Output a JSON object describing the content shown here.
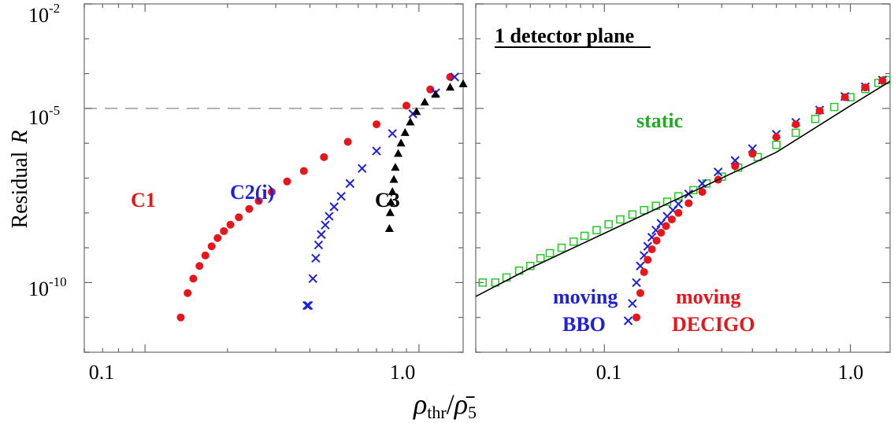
{
  "ylabel_text": "Residual",
  "ylabel_symbol": "R",
  "xlabel_rho": "ρ",
  "xlabel_sub1": "thr",
  "xlabel_slash": "/",
  "xlabel_rhobar": "ρ̄",
  "xlabel_sub2": "5",
  "colors": {
    "red": "#e8151b",
    "blue": "#1f1fe0",
    "black": "#000000",
    "green": "#22cc22",
    "dashed": "#999999"
  },
  "chart_data": [
    {
      "type": "scatter",
      "xscale": "log",
      "yscale": "log",
      "xlim": [
        0.06,
        1.45
      ],
      "ylim": [
        1e-12,
        0.01
      ],
      "xticks": [
        {
          "value": 0.1,
          "label": "0.1"
        },
        {
          "value": 1.0,
          "label": "1.0"
        }
      ],
      "yticks": [
        {
          "value": 0.01,
          "base": "10",
          "exp": "-2"
        },
        {
          "value": 1e-05,
          "base": "10",
          "exp": "-5"
        },
        {
          "value": 1e-10,
          "base": "10",
          "exp": "-10"
        }
      ],
      "reference_line": 1e-05,
      "series": [
        {
          "name": "C1",
          "color": "#e8151b",
          "marker": "circle",
          "x": [
            0.135,
            0.143,
            0.15,
            0.158,
            0.166,
            0.175,
            0.184,
            0.194,
            0.205,
            0.22,
            0.24,
            0.26,
            0.29,
            0.33,
            0.38,
            0.45,
            0.55,
            0.7,
            0.9,
            1.1,
            1.3
          ],
          "y": [
            1e-11,
            5e-11,
            1.3e-10,
            3e-10,
            6e-10,
            1.1e-09,
            1.9e-09,
            3e-09,
            4.6e-09,
            7.5e-09,
            1.3e-08,
            2.2e-08,
            4e-08,
            8e-08,
            1.6e-07,
            4e-07,
            1.1e-06,
            3.5e-06,
            1.2e-05,
            3.5e-05,
            8e-05
          ]
        },
        {
          "name": "C2(i)",
          "color": "#1f1fe0",
          "marker": "x",
          "x": [
            0.39,
            0.395,
            0.41,
            0.42,
            0.43,
            0.44,
            0.455,
            0.47,
            0.49,
            0.52,
            0.56,
            0.62,
            0.7,
            0.8,
            0.95,
            1.15,
            1.35
          ],
          "y": [
            2.2e-11,
            2.2e-11,
            1.3e-10,
            5e-10,
            1.2e-09,
            2.4e-09,
            4.5e-09,
            8e-09,
            1.5e-08,
            3e-08,
            7e-08,
            1.9e-07,
            6e-07,
            1.9e-06,
            7e-06,
            2.8e-05,
            8e-05
          ]
        },
        {
          "name": "C3",
          "color": "#000000",
          "marker": "triangle",
          "x": [
            0.78,
            0.785,
            0.79,
            0.8,
            0.81,
            0.82,
            0.84,
            0.86,
            0.89,
            0.93,
            0.98,
            1.05,
            1.15,
            1.3,
            1.45
          ],
          "y": [
            3.5e-09,
            1e-08,
            2e-08,
            4e-08,
            9e-08,
            2e-07,
            5e-07,
            1e-06,
            2e-06,
            4e-06,
            8e-06,
            1.5e-05,
            2.5e-05,
            4e-05,
            5e-05
          ]
        }
      ]
    },
    {
      "type": "scatter",
      "xscale": "log",
      "yscale": "log",
      "title": "1 detector plane",
      "xlim": [
        0.03,
        1.45
      ],
      "ylim": [
        1e-12,
        0.01
      ],
      "xticks": [
        {
          "value": 0.1,
          "label": "0.1"
        },
        {
          "value": 1.0,
          "label": "1.0"
        }
      ],
      "series": [
        {
          "name": "static",
          "color": "#22cc22",
          "marker": "square",
          "x": [
            0.032,
            0.036,
            0.04,
            0.045,
            0.05,
            0.055,
            0.06,
            0.067,
            0.075,
            0.083,
            0.093,
            0.104,
            0.116,
            0.13,
            0.145,
            0.162,
            0.18,
            0.2,
            0.23,
            0.26,
            0.3,
            0.35,
            0.42,
            0.5,
            0.6,
            0.72,
            0.86,
            1.0,
            1.15,
            1.3,
            1.4
          ],
          "y": [
            1e-10,
            1e-10,
            1.4e-10,
            2.2e-10,
            3e-10,
            5e-10,
            7e-10,
            1e-09,
            1.5e-09,
            2.2e-09,
            3.2e-09,
            4.7e-09,
            6.5e-09,
            9e-09,
            1.2e-08,
            1.6e-08,
            2.1e-08,
            3e-08,
            4.5e-08,
            7e-08,
            1.1e-07,
            2e-07,
            4e-07,
            9e-07,
            2e-06,
            5e-06,
            1.1e-05,
            2.1e-05,
            3.6e-05,
            5.4e-05,
            6.5e-05
          ]
        },
        {
          "name": "moving BBO",
          "color": "#1f1fe0",
          "marker": "x",
          "x": [
            0.125,
            0.13,
            0.135,
            0.14,
            0.145,
            0.15,
            0.156,
            0.162,
            0.17,
            0.18,
            0.19,
            0.2,
            0.22,
            0.25,
            0.29,
            0.34,
            0.4,
            0.5,
            0.6,
            0.75,
            0.95,
            1.15,
            1.35
          ],
          "y": [
            8e-12,
            2.5e-11,
            1e-10,
            3e-10,
            6e-10,
            1.1e-09,
            2e-09,
            3.2e-09,
            5e-09,
            8e-09,
            1.2e-08,
            1.8e-08,
            3.5e-08,
            7e-08,
            1.5e-07,
            3.2e-07,
            7e-07,
            1.8e-06,
            4e-06,
            9e-06,
            2.2e-05,
            4.2e-05,
            6.5e-05
          ]
        },
        {
          "name": "moving DECIGO",
          "color": "#e8151b",
          "marker": "circle",
          "x": [
            0.135,
            0.14,
            0.145,
            0.15,
            0.156,
            0.163,
            0.17,
            0.178,
            0.188,
            0.2,
            0.22,
            0.25,
            0.29,
            0.34,
            0.4,
            0.5,
            0.6,
            0.75,
            0.95,
            1.15,
            1.35
          ],
          "y": [
            1e-11,
            5e-11,
            2e-10,
            4.5e-10,
            9e-10,
            1.6e-09,
            2.7e-09,
            4.2e-09,
            6.5e-09,
            1e-08,
            1.9e-08,
            4e-08,
            9e-08,
            2.2e-07,
            5e-07,
            1.5e-06,
            3.5e-06,
            8.5e-06,
            2.1e-05,
            4e-05,
            6.3e-05
          ]
        },
        {
          "name": "",
          "color": "#000000",
          "marker": "line",
          "x": [
            0.03,
            0.05,
            0.1,
            0.2,
            0.5,
            1.0,
            1.45
          ],
          "y": [
            4e-11,
            2.6e-10,
            2.6e-09,
            2.6e-08,
            5.5e-07,
            1.2e-05,
            6e-05
          ]
        }
      ]
    }
  ],
  "labels": {
    "c1": "C1",
    "c2": "C2(i)",
    "c3": "C3",
    "title2": "1 detector plane",
    "static": "static",
    "moving1": "moving",
    "bbo": "BBO",
    "moving2": "moving",
    "decigo": "DECIGO"
  }
}
